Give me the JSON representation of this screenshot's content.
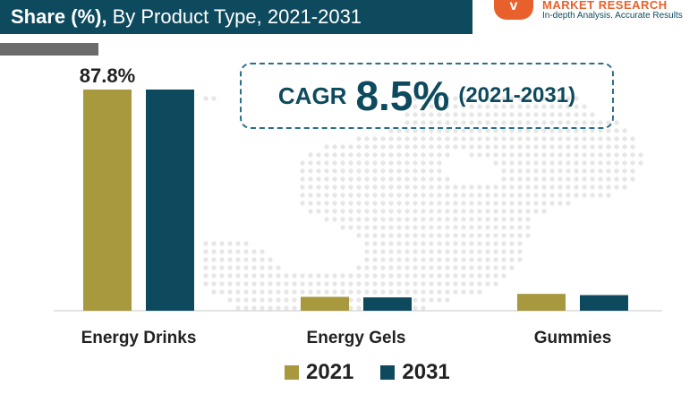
{
  "header": {
    "title_bold": "Share (%),",
    "title_rest": "By Product Type, 2021-2031"
  },
  "logo": {
    "name": "MARKET RESEARCH",
    "tagline": "In-depth Analysis. Accurate Results",
    "brand_color": "#e8612c"
  },
  "cagr": {
    "label": "CAGR",
    "value": "8.5%",
    "period": "(2021-2031)"
  },
  "colors": {
    "header_bg": "#0e4a5e",
    "series_2021": "#a8983e",
    "series_2031": "#0e4a5e"
  },
  "chart_data": {
    "type": "bar",
    "title": "Share (%), By Product Type, 2021-2031",
    "categories": [
      "Energy Drinks",
      "Energy Gels",
      "Gummies"
    ],
    "series": [
      {
        "name": "2021",
        "values": [
          87.8,
          5.5,
          6.7
        ]
      },
      {
        "name": "2031",
        "values": [
          87.8,
          5.3,
          6.2
        ]
      }
    ],
    "data_labels": [
      {
        "category": "Energy Drinks",
        "series": "2021",
        "text": "87.8%"
      }
    ],
    "ylim": [
      0,
      100
    ],
    "legend_position": "bottom",
    "grid": false
  }
}
